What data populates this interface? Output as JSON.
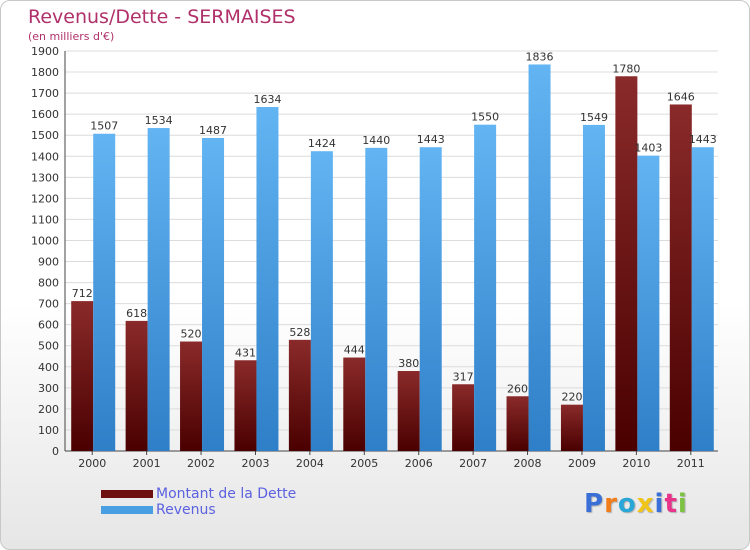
{
  "colors": {
    "dette": "#6e1010",
    "revenus": "#4a9ee2",
    "title": "#b0306a",
    "legend_text": "#5b61e0"
  },
  "chart_data": {
    "type": "bar",
    "title": "Revenus/Dette - SERMAISES",
    "subtitle": "(en milliers d'€)",
    "categories": [
      "2000",
      "2001",
      "2002",
      "2003",
      "2004",
      "2005",
      "2006",
      "2007",
      "2008",
      "2009",
      "2010",
      "2011"
    ],
    "series": [
      {
        "name": "Montant de la Dette",
        "values": [
          712,
          618,
          520,
          431,
          528,
          444,
          380,
          317,
          260,
          220,
          1780,
          1646
        ]
      },
      {
        "name": "Revenus",
        "values": [
          1507,
          1534,
          1487,
          1634,
          1424,
          1440,
          1443,
          1550,
          1836,
          1549,
          1403,
          1443
        ]
      }
    ],
    "ylim": [
      0,
      1900
    ],
    "ytick_step": 100,
    "grid": true,
    "legend_position": "bottom-left"
  },
  "logo": {
    "text": "Proxiti",
    "letter_colors": [
      "#3b6fd8",
      "#f07d1a",
      "#2aa7d6",
      "#f0c419",
      "#3b6fd8",
      "#e8338a",
      "#7dc242"
    ]
  }
}
